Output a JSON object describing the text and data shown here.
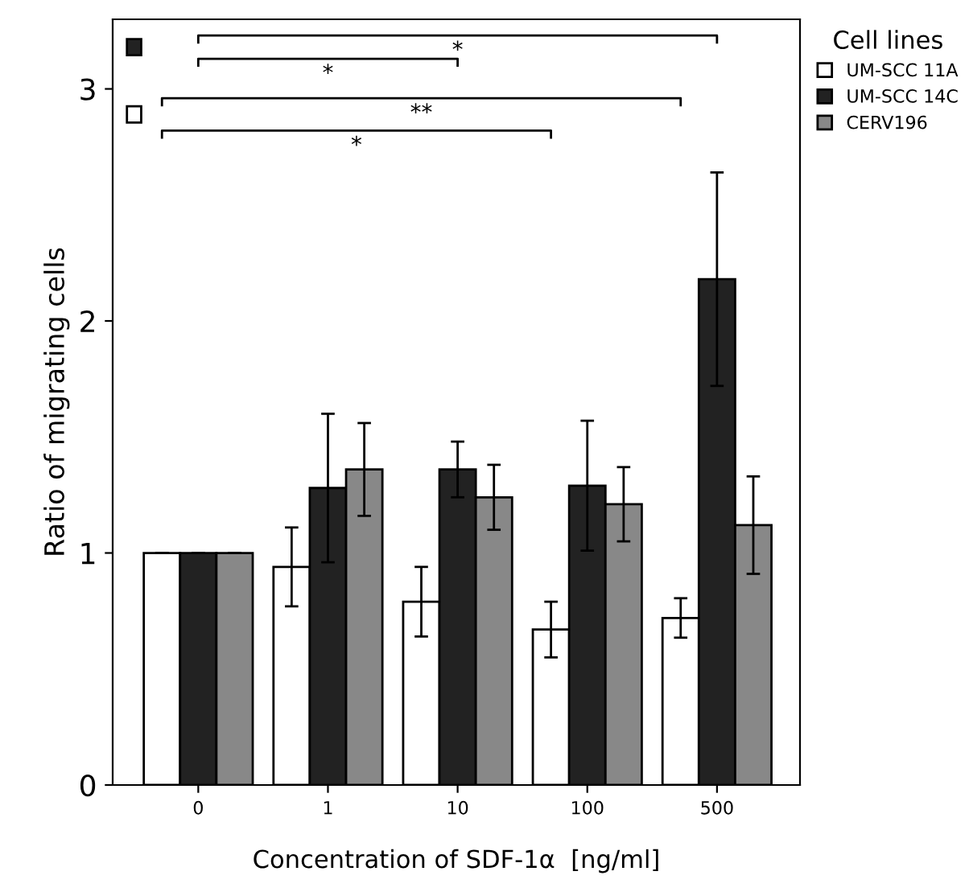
{
  "chart_data": {
    "type": "bar",
    "xlabel": "Concentration of SDF-1α  [ng/ml]",
    "ylabel": "Ratio of migrating cells",
    "legend_title": "Cell lines",
    "categories": [
      "0",
      "1",
      "10",
      "100",
      "500"
    ],
    "series": [
      {
        "name": "UM-SCC 11A",
        "color": "#ffffff",
        "values": [
          1.0,
          0.94,
          0.79,
          0.67,
          0.72
        ],
        "errors": [
          0,
          0.17,
          0.15,
          0.12,
          0.085
        ]
      },
      {
        "name": "UM-SCC 14C",
        "color": "#222222",
        "values": [
          1.0,
          1.28,
          1.36,
          1.29,
          2.18
        ],
        "errors": [
          0,
          0.32,
          0.12,
          0.28,
          0.46
        ]
      },
      {
        "name": "CERV196",
        "color": "#888888",
        "values": [
          1.0,
          1.36,
          1.24,
          1.21,
          1.12
        ],
        "errors": [
          0,
          0.2,
          0.14,
          0.16,
          0.21
        ]
      }
    ],
    "ylim": [
      0,
      3.3
    ],
    "yticks": [
      0,
      1,
      2,
      3
    ],
    "grid": false,
    "legend": "top right",
    "annotations": [
      "*",
      "*",
      "**",
      "*"
    ]
  }
}
